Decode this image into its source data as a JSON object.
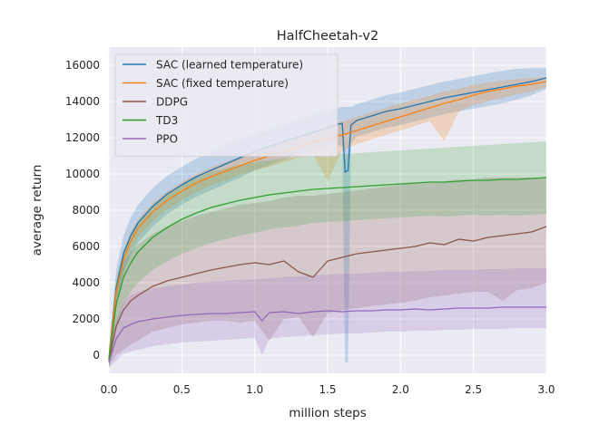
{
  "chart_data": {
    "type": "line",
    "title": "HalfCheetah-v2",
    "xlabel": "million steps",
    "ylabel": "average return",
    "xlim": [
      0,
      3.0
    ],
    "ylim": [
      -1000,
      17000
    ],
    "x_ticks": [
      0.0,
      0.5,
      1.0,
      1.5,
      2.0,
      2.5,
      3.0
    ],
    "x_tick_labels": [
      "0.0",
      "0.5",
      "1.0",
      "1.5",
      "2.0",
      "2.5",
      "3.0"
    ],
    "y_ticks": [
      0,
      2000,
      4000,
      6000,
      8000,
      10000,
      12000,
      14000,
      16000
    ],
    "y_tick_labels": [
      "0",
      "2000",
      "4000",
      "6000",
      "8000",
      "10000",
      "12000",
      "14000",
      "16000"
    ],
    "grid": true,
    "background": "#eaeaf2",
    "legend_position": "top-left",
    "series": [
      {
        "name": "SAC (learned temperature)",
        "color": "#1f77b4",
        "band_opacity": 0.22,
        "x": [
          0,
          0.05,
          0.1,
          0.15,
          0.2,
          0.3,
          0.4,
          0.5,
          0.6,
          0.7,
          0.8,
          0.9,
          1.0,
          1.1,
          1.2,
          1.3,
          1.4,
          1.5,
          1.55,
          1.6,
          1.62,
          1.64,
          1.66,
          1.7,
          1.8,
          1.9,
          2.0,
          2.1,
          2.2,
          2.3,
          2.4,
          2.5,
          2.6,
          2.7,
          2.8,
          2.9,
          3.0
        ],
        "mean": [
          -200,
          3700,
          5600,
          6600,
          7300,
          8200,
          8900,
          9400,
          9850,
          10200,
          10550,
          10900,
          11250,
          11500,
          11800,
          12050,
          12300,
          12550,
          12700,
          12800,
          10100,
          10200,
          12700,
          12950,
          13200,
          13450,
          13600,
          13800,
          14000,
          14200,
          14350,
          14500,
          14650,
          14800,
          14950,
          15100,
          15300
        ],
        "upper": [
          300,
          4700,
          6600,
          7600,
          8300,
          9200,
          9900,
          10400,
          10850,
          11200,
          11550,
          11900,
          12200,
          12400,
          12700,
          12950,
          13200,
          13450,
          13600,
          13700,
          13700,
          13700,
          13700,
          13850,
          14100,
          14350,
          14500,
          14700,
          14900,
          15100,
          15250,
          15400,
          15550,
          15700,
          15800,
          15850,
          15850
        ],
        "lower": [
          -700,
          2600,
          4500,
          5500,
          6200,
          7100,
          7800,
          8300,
          8750,
          9100,
          9450,
          9800,
          10200,
          10500,
          10800,
          11050,
          11300,
          11550,
          11700,
          11500,
          -400,
          -400,
          11700,
          12050,
          12300,
          12550,
          12700,
          12900,
          13100,
          13300,
          13450,
          13600,
          13750,
          13900,
          14100,
          14350,
          14700
        ]
      },
      {
        "name": "SAC (fixed temperature)",
        "color": "#ff7f0e",
        "band_opacity": 0.22,
        "x": [
          0,
          0.05,
          0.1,
          0.15,
          0.2,
          0.3,
          0.4,
          0.5,
          0.6,
          0.7,
          0.8,
          0.9,
          1.0,
          1.1,
          1.2,
          1.3,
          1.4,
          1.5,
          1.6,
          1.7,
          1.8,
          1.9,
          2.0,
          2.1,
          2.2,
          2.3,
          2.4,
          2.5,
          2.6,
          2.7,
          2.8,
          2.9,
          3.0
        ],
        "mean": [
          -200,
          3500,
          5300,
          6300,
          7000,
          7900,
          8550,
          9050,
          9500,
          9850,
          10150,
          10450,
          10750,
          11000,
          11250,
          11500,
          11750,
          11950,
          12150,
          12400,
          12650,
          12900,
          13150,
          13400,
          13650,
          13900,
          14100,
          14350,
          14550,
          14700,
          14850,
          14950,
          15100
        ],
        "upper": [
          200,
          4000,
          5800,
          6800,
          7500,
          8400,
          9050,
          9550,
          10000,
          10350,
          10650,
          10950,
          11300,
          11600,
          11850,
          12100,
          12400,
          12700,
          12900,
          13150,
          13400,
          13650,
          13900,
          14100,
          14300,
          14550,
          14700,
          14900,
          15050,
          15150,
          15250,
          15300,
          15350
        ],
        "lower": [
          -600,
          3000,
          4800,
          5800,
          6500,
          7400,
          8050,
          8550,
          9000,
          9350,
          9650,
          9950,
          10200,
          10400,
          10650,
          10900,
          11100,
          9600,
          11300,
          11650,
          11900,
          12150,
          12400,
          12650,
          12900,
          11800,
          13450,
          13800,
          14000,
          14200,
          14400,
          14550,
          14800
        ]
      },
      {
        "name": "DDPG",
        "color": "#8c564b",
        "band_opacity": 0.22,
        "x": [
          0,
          0.05,
          0.1,
          0.15,
          0.2,
          0.3,
          0.4,
          0.5,
          0.6,
          0.7,
          0.8,
          0.9,
          1.0,
          1.1,
          1.2,
          1.3,
          1.4,
          1.5,
          1.6,
          1.7,
          1.8,
          1.9,
          2.0,
          2.1,
          2.2,
          2.3,
          2.4,
          2.5,
          2.6,
          2.7,
          2.8,
          2.9,
          3.0
        ],
        "mean": [
          -300,
          1600,
          2500,
          3000,
          3300,
          3800,
          4100,
          4300,
          4500,
          4700,
          4850,
          5000,
          5100,
          5000,
          5200,
          4600,
          4300,
          5200,
          5400,
          5600,
          5700,
          5800,
          5900,
          6000,
          6200,
          6100,
          6400,
          6300,
          6500,
          6600,
          6700,
          6800,
          7100
        ],
        "upper": [
          400,
          3700,
          5100,
          5700,
          6100,
          6700,
          7100,
          7400,
          7700,
          7900,
          8100,
          8300,
          8400,
          8500,
          8700,
          8800,
          8800,
          8900,
          9000,
          9100,
          9200,
          9300,
          9400,
          9500,
          9500,
          9600,
          9700,
          9700,
          9800,
          9800,
          9800,
          9800,
          9800
        ],
        "lower": [
          -600,
          0,
          300,
          600,
          800,
          1300,
          1500,
          1700,
          1800,
          1900,
          1900,
          1800,
          1900,
          800,
          2000,
          2100,
          1000,
          2300,
          2500,
          2600,
          2700,
          2800,
          2900,
          3000,
          3200,
          3300,
          3400,
          3500,
          3500,
          3000,
          3600,
          3700,
          4000
        ]
      },
      {
        "name": "TD3",
        "color": "#2ca02c",
        "band_opacity": 0.2,
        "x": [
          0,
          0.05,
          0.1,
          0.15,
          0.2,
          0.3,
          0.4,
          0.5,
          0.6,
          0.7,
          0.8,
          0.9,
          1.0,
          1.1,
          1.2,
          1.3,
          1.4,
          1.5,
          1.6,
          1.7,
          1.8,
          1.9,
          2.0,
          2.1,
          2.2,
          2.3,
          2.4,
          2.5,
          2.6,
          2.7,
          2.8,
          2.9,
          3.0
        ],
        "mean": [
          -300,
          2800,
          4300,
          5100,
          5700,
          6500,
          7050,
          7500,
          7850,
          8150,
          8350,
          8550,
          8700,
          8850,
          8950,
          9050,
          9150,
          9200,
          9250,
          9300,
          9350,
          9400,
          9450,
          9500,
          9550,
          9550,
          9600,
          9650,
          9650,
          9700,
          9700,
          9750,
          9800
        ],
        "upper": [
          200,
          4200,
          5800,
          6700,
          7400,
          8300,
          8900,
          9400,
          9800,
          10100,
          10300,
          10500,
          10650,
          10750,
          10850,
          10950,
          11000,
          11050,
          11100,
          11150,
          11200,
          11250,
          11300,
          11350,
          11400,
          11450,
          11500,
          11550,
          11600,
          11650,
          11700,
          11750,
          11800
        ],
        "lower": [
          -700,
          1400,
          2800,
          3500,
          4000,
          4700,
          5200,
          5600,
          5900,
          6200,
          6400,
          6600,
          6750,
          6950,
          7050,
          7150,
          7300,
          7350,
          7400,
          7450,
          7500,
          7550,
          7600,
          7650,
          7700,
          7650,
          7700,
          7750,
          7700,
          7750,
          7700,
          7750,
          7800
        ]
      },
      {
        "name": "PPO",
        "color": "#9467bd",
        "band_opacity": 0.22,
        "x": [
          0,
          0.05,
          0.1,
          0.15,
          0.2,
          0.3,
          0.4,
          0.5,
          0.6,
          0.7,
          0.8,
          0.9,
          1.0,
          1.05,
          1.1,
          1.2,
          1.3,
          1.4,
          1.5,
          1.6,
          1.7,
          1.8,
          1.9,
          2.0,
          2.1,
          2.2,
          2.3,
          2.4,
          2.5,
          2.6,
          2.7,
          2.8,
          2.9,
          3.0
        ],
        "mean": [
          -400,
          900,
          1500,
          1700,
          1850,
          2000,
          2100,
          2200,
          2250,
          2300,
          2300,
          2350,
          2400,
          1900,
          2350,
          2400,
          2300,
          2400,
          2450,
          2400,
          2450,
          2450,
          2500,
          2500,
          2550,
          2500,
          2550,
          2600,
          2600,
          2600,
          2650,
          2650,
          2650,
          2650
        ],
        "upper": [
          100,
          2000,
          2900,
          3300,
          3500,
          3700,
          3800,
          3900,
          4000,
          4050,
          4100,
          4150,
          4200,
          4200,
          4250,
          4300,
          4350,
          4400,
          4450,
          4500,
          4500,
          4550,
          4600,
          4600,
          4650,
          4650,
          4700,
          4700,
          4700,
          4750,
          4750,
          4800,
          4800,
          4800
        ],
        "lower": [
          -700,
          -300,
          100,
          200,
          300,
          500,
          600,
          700,
          750,
          800,
          850,
          900,
          950,
          0,
          900,
          1000,
          1050,
          1100,
          1150,
          1200,
          1200,
          1250,
          1300,
          1300,
          1350,
          1350,
          1400,
          1400,
          1450,
          1450,
          1450,
          1500,
          1500,
          1500
        ]
      }
    ]
  }
}
